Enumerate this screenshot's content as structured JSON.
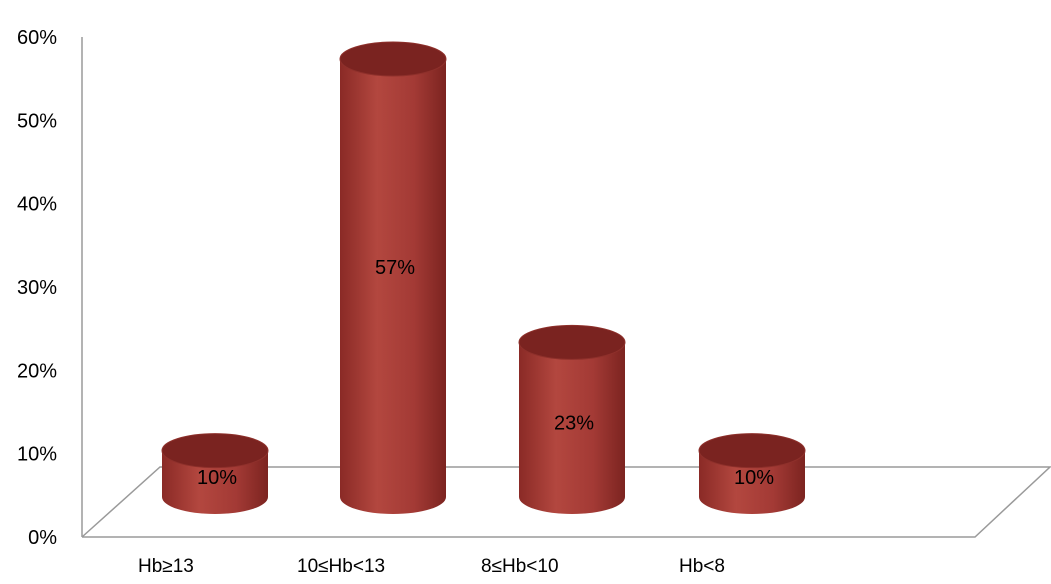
{
  "chart_data": {
    "type": "bar",
    "style": "3d-cylinder",
    "categories": [
      "Hb≥13",
      "10≤Hb<13",
      "8≤Hb<10",
      "Hb<8"
    ],
    "values": [
      10,
      57,
      23,
      10
    ],
    "data_labels": [
      "10%",
      "57%",
      "23%",
      "10%"
    ],
    "yticks": [
      "0%",
      "10%",
      "20%",
      "30%",
      "40%",
      "50%",
      "60%"
    ],
    "ylim": [
      0,
      60
    ],
    "title": "",
    "xlabel": "",
    "ylabel": "",
    "grid": false,
    "legend": "none",
    "bar_color": "#a33a35",
    "bar_top_color": "#7a2320",
    "axis_color": "#9a9a9a"
  }
}
